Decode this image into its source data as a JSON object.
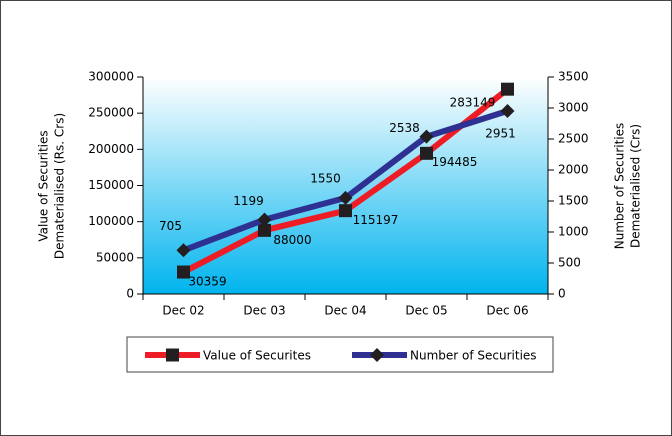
{
  "chart_data": {
    "type": "line",
    "y_label": [
      "Value of Securities",
      "Dematerialised (Rs. Crs)"
    ],
    "y2_label": [
      "Number of Securities",
      "Dematerialised (Crs)"
    ],
    "categories": [
      "Dec 02",
      "Dec 03",
      "Dec 04",
      "Dec 05",
      "Dec 06"
    ],
    "series": [
      {
        "name": "Value of Securites",
        "color": "#ee1c24",
        "marker": "square",
        "values": [
          30359,
          88000,
          115197,
          194485,
          283149
        ]
      },
      {
        "name": "Number of Securities",
        "color": "#2e3192",
        "marker": "diamond",
        "axis": "y2",
        "values": [
          705,
          1199,
          1550,
          2538,
          2951
        ]
      }
    ],
    "ylim": [
      0,
      300000
    ],
    "yticks": [
      0,
      50000,
      100000,
      150000,
      200000,
      250000,
      300000
    ],
    "y2lim": [
      0,
      3500
    ],
    "y2ticks": [
      0,
      500,
      1000,
      1500,
      2000,
      2500,
      3000,
      3500
    ],
    "legend": "bottom"
  }
}
